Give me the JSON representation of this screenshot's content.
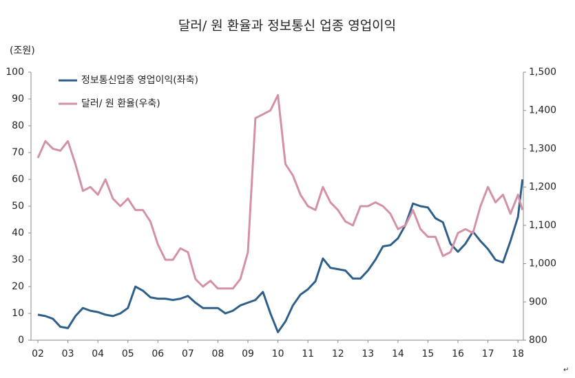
{
  "chart_data": {
    "type": "line",
    "title": "달러/ 원 환율과 정보통신 업종 영업이익",
    "y_unit_label": "(조원)",
    "end_mark": "↵",
    "x": [
      2002,
      2002.25,
      2002.5,
      2002.75,
      2003,
      2003.25,
      2003.5,
      2003.75,
      2004,
      2004.25,
      2004.5,
      2004.75,
      2005,
      2005.25,
      2005.5,
      2005.75,
      2006,
      2006.25,
      2006.5,
      2006.75,
      2007,
      2007.25,
      2007.5,
      2007.75,
      2008,
      2008.25,
      2008.5,
      2008.75,
      2009,
      2009.25,
      2009.5,
      2009.75,
      2010,
      2010.25,
      2010.5,
      2010.75,
      2011,
      2011.25,
      2011.5,
      2011.75,
      2012,
      2012.25,
      2012.5,
      2012.75,
      2013,
      2013.25,
      2013.5,
      2013.75,
      2014,
      2014.25,
      2014.5,
      2014.75,
      2015,
      2015.25,
      2015.5,
      2015.75,
      2016,
      2016.25,
      2016.5,
      2016.75,
      2017,
      2017.25,
      2017.5,
      2017.75,
      2018,
      2018.15
    ],
    "series": [
      {
        "name": "정보통신업종 영업이익(좌축)",
        "color": "#2e5f8a",
        "axis": "y",
        "values": [
          9.5,
          9,
          8,
          5,
          4.5,
          9,
          12,
          11,
          10.5,
          9.5,
          9,
          10,
          12,
          20,
          18.5,
          16,
          15.5,
          15.5,
          15,
          15.5,
          16.5,
          14,
          12,
          12,
          12,
          10,
          11,
          13,
          14,
          15,
          18,
          10,
          3,
          7,
          13,
          17,
          19,
          22,
          30.5,
          27,
          26.5,
          26,
          23,
          23,
          26,
          30,
          35,
          35.5,
          38,
          43,
          51,
          50,
          49.5,
          45.5,
          44,
          36,
          33,
          36,
          40.5,
          37,
          34,
          30,
          29,
          37,
          46,
          60
        ]
      },
      {
        "name": "달러/ 원 환율(우축)",
        "color": "#d391a5",
        "axis": "y2",
        "values": [
          1276,
          1320,
          1300,
          1295,
          1320,
          1260,
          1190,
          1200,
          1180,
          1220,
          1170,
          1150,
          1170,
          1140,
          1140,
          1110,
          1050,
          1010,
          1010,
          1040,
          1030,
          960,
          940,
          955,
          935,
          935,
          935,
          960,
          1030,
          1380,
          1390,
          1400,
          1440,
          1260,
          1230,
          1180,
          1150,
          1140,
          1200,
          1160,
          1140,
          1110,
          1100,
          1150,
          1150,
          1160,
          1150,
          1130,
          1090,
          1100,
          1140,
          1090,
          1070,
          1070,
          1020,
          1030,
          1080,
          1090,
          1080,
          1150,
          1200,
          1160,
          1180,
          1130,
          1180,
          1140
        ]
      }
    ],
    "xlim": [
      2001.77,
      2018.18
    ],
    "xticks": [
      {
        "value": 2002,
        "label": "02"
      },
      {
        "value": 2003,
        "label": "03"
      },
      {
        "value": 2004,
        "label": "04"
      },
      {
        "value": 2005,
        "label": "05"
      },
      {
        "value": 2006,
        "label": "06"
      },
      {
        "value": 2007,
        "label": "07"
      },
      {
        "value": 2008,
        "label": "08"
      },
      {
        "value": 2009,
        "label": "09"
      },
      {
        "value": 2010,
        "label": "10"
      },
      {
        "value": 2011,
        "label": "11"
      },
      {
        "value": 2012,
        "label": "12"
      },
      {
        "value": 2013,
        "label": "13"
      },
      {
        "value": 2014,
        "label": "14"
      },
      {
        "value": 2015,
        "label": "15"
      },
      {
        "value": 2016,
        "label": "16"
      },
      {
        "value": 2017,
        "label": "17"
      },
      {
        "value": 2018,
        "label": "18"
      }
    ],
    "ylim": [
      0,
      100
    ],
    "yticks": [
      0,
      10,
      20,
      30,
      40,
      50,
      60,
      70,
      80,
      90,
      100
    ],
    "y2lim": [
      800,
      1500
    ],
    "y2ticks": [
      {
        "value": 800,
        "label": "800"
      },
      {
        "value": 900,
        "label": "900"
      },
      {
        "value": 1000,
        "label": "1,000"
      },
      {
        "value": 1100,
        "label": "1,100"
      },
      {
        "value": 1200,
        "label": "1,200"
      },
      {
        "value": 1300,
        "label": "1,300"
      },
      {
        "value": 1400,
        "label": "1,400"
      },
      {
        "value": 1500,
        "label": "1,500"
      }
    ],
    "grid": false
  }
}
